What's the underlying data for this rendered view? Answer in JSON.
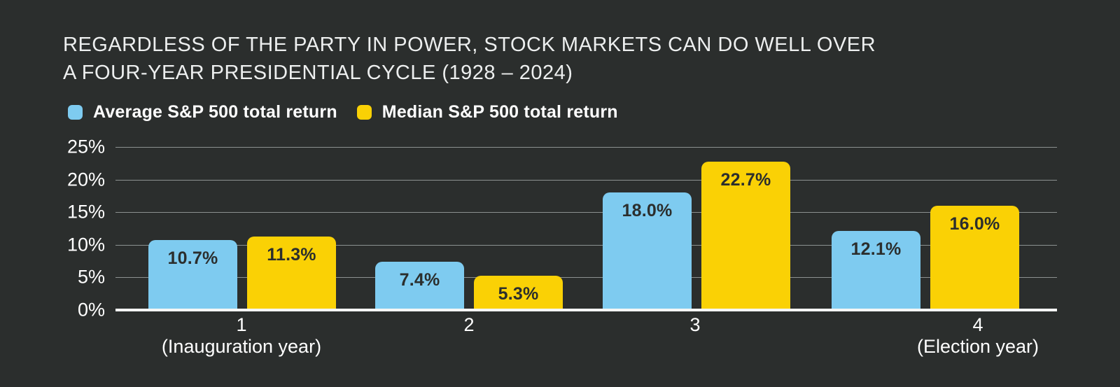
{
  "title": {
    "line1": "REGARDLESS OF THE PARTY IN POWER, STOCK MARKETS CAN DO WELL OVER",
    "line2": "A FOUR-YEAR PRESIDENTIAL CYCLE (1928 – 2024)"
  },
  "legend": {
    "items": [
      {
        "label": "Average S&P 500 total return",
        "color": "#7ECBF0"
      },
      {
        "label": "Median S&P 500 total return",
        "color": "#FAD105"
      }
    ]
  },
  "colors": {
    "background": "#2B2E2D",
    "title_text": "#EDEFEF",
    "axis_text": "#FFFFFF",
    "gridline": "#DCE3E1",
    "baseline": "#F5F7F6",
    "bar_value_text": "#2B2E2D",
    "average_bar": "#7ECBF0",
    "median_bar": "#FAD105"
  },
  "chart_data": {
    "type": "bar",
    "title": "REGARDLESS OF THE PARTY IN POWER, STOCK MARKETS CAN DO WELL OVER A FOUR-YEAR PRESIDENTIAL CYCLE (1928 – 2024)",
    "categories": [
      {
        "label": "1",
        "sublabel": "(Inauguration year)"
      },
      {
        "label": "2",
        "sublabel": ""
      },
      {
        "label": "3",
        "sublabel": ""
      },
      {
        "label": "4",
        "sublabel": "(Election year)"
      }
    ],
    "series": [
      {
        "name": "Average S&P 500 total return",
        "color": "#7ECBF0",
        "values": [
          10.7,
          7.4,
          18.0,
          12.1
        ],
        "labels": [
          "10.7%",
          "7.4%",
          "18.0%",
          "12.1%"
        ]
      },
      {
        "name": "Median S&P 500 total return",
        "color": "#FAD105",
        "values": [
          11.3,
          5.3,
          22.7,
          16.0
        ],
        "labels": [
          "11.3%",
          "5.3%",
          "22.7%",
          "16.0%"
        ]
      }
    ],
    "y_axis": {
      "min": 0,
      "max": 25,
      "step": 5,
      "tick_labels": [
        "25%",
        "20%",
        "15%",
        "10%",
        "5%",
        "0%"
      ],
      "unit": "%"
    },
    "xlabel": "",
    "ylabel": "",
    "ylim": [
      0,
      25
    ],
    "grid": true,
    "legend_position": "top",
    "value_labels": "inside-top"
  }
}
